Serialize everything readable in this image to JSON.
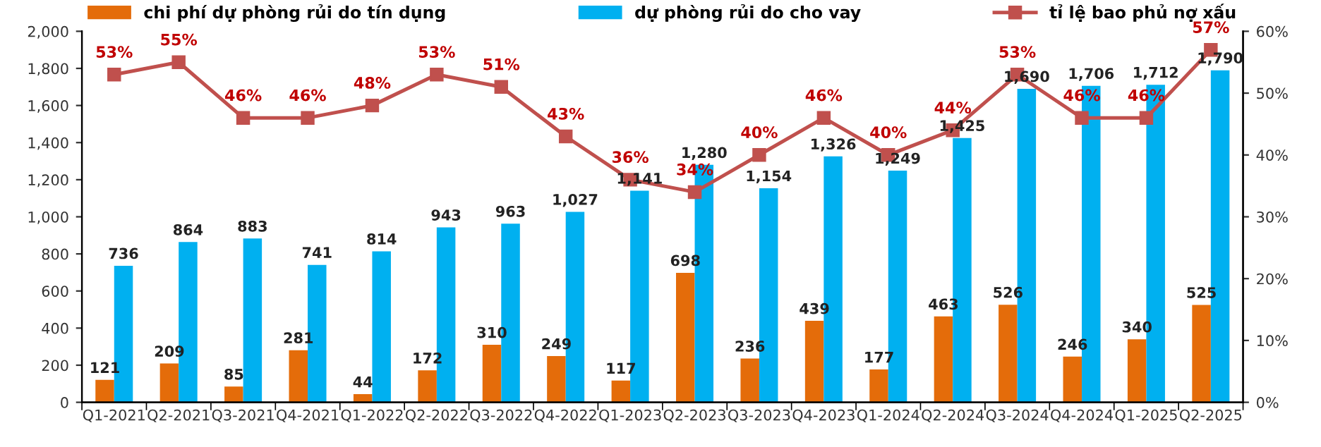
{
  "chart_data": {
    "type": "bar",
    "categories": [
      "Q1-2021",
      "Q2-2021",
      "Q3-2021",
      "Q4-2021",
      "Q1-2022",
      "Q2-2022",
      "Q3-2022",
      "Q4-2022",
      "Q1-2023",
      "Q2-2023",
      "Q3-2023",
      "Q4-2023",
      "Q1-2024",
      "Q2-2024",
      "Q3-2024",
      "Q4-2024",
      "Q1-2025",
      "Q2-2025"
    ],
    "series": [
      {
        "name": "chi phí dự phòng rủi do tín dụng",
        "color": "#e46c0a",
        "values": [
          121,
          209,
          85,
          281,
          44,
          172,
          310,
          249,
          117,
          698,
          236,
          439,
          177,
          463,
          526,
          246,
          340,
          525
        ],
        "value_labels": [
          "121",
          "209",
          "85",
          "281",
          "44",
          "172",
          "310",
          "249",
          "117",
          "698",
          "236",
          "439",
          "177",
          "463",
          "526",
          "246",
          "340",
          "525"
        ]
      },
      {
        "name": "dự phòng rủi do cho vay",
        "color": "#00b0f0",
        "values": [
          736,
          864,
          883,
          741,
          814,
          943,
          963,
          1027,
          1141,
          1280,
          1154,
          1326,
          1249,
          1425,
          1690,
          1706,
          1712,
          1790
        ],
        "value_labels": [
          "736",
          "864",
          "883",
          "741",
          "814",
          "943",
          "963",
          "1,027",
          "1,141",
          "1,280",
          "1,154",
          "1,326",
          "1,249",
          "1,425",
          "1,690",
          "1,706",
          "1,712",
          "1,790"
        ]
      },
      {
        "name": "tỉ lệ bao phủ nợ xấu",
        "type": "line",
        "axis": "y2",
        "color": "#c0504d",
        "marker": "square",
        "values": [
          53,
          55,
          46,
          46,
          48,
          53,
          51,
          43,
          36,
          34,
          40,
          46,
          40,
          44,
          53,
          46,
          46,
          57
        ],
        "value_labels": [
          "53%",
          "55%",
          "46%",
          "46%",
          "48%",
          "53%",
          "51%",
          "43%",
          "36%",
          "34%",
          "40%",
          "46%",
          "40%",
          "44%",
          "53%",
          "46%",
          "46%",
          "57%"
        ]
      }
    ],
    "ylim": [
      0,
      2000
    ],
    "yticks": [
      0,
      200,
      400,
      600,
      800,
      {
        "value": 1000,
        "label": "1,000"
      },
      {
        "value": 1200,
        "label": "1,200"
      },
      {
        "value": 1400,
        "label": "1,400"
      },
      {
        "value": 1600,
        "label": "1,600"
      },
      {
        "value": 1800,
        "label": "1,800"
      },
      {
        "value": 2000,
        "label": "2,000"
      }
    ],
    "y2lim": [
      0,
      60
    ],
    "y2ticks": [
      {
        "value": 0,
        "label": "0%"
      },
      {
        "value": 10,
        "label": "10%"
      },
      {
        "value": 20,
        "label": "20%"
      },
      {
        "value": 30,
        "label": "30%"
      },
      {
        "value": 40,
        "label": "40%"
      },
      {
        "value": 50,
        "label": "50%"
      },
      {
        "value": 60,
        "label": "60%"
      }
    ],
    "legend": "top"
  }
}
